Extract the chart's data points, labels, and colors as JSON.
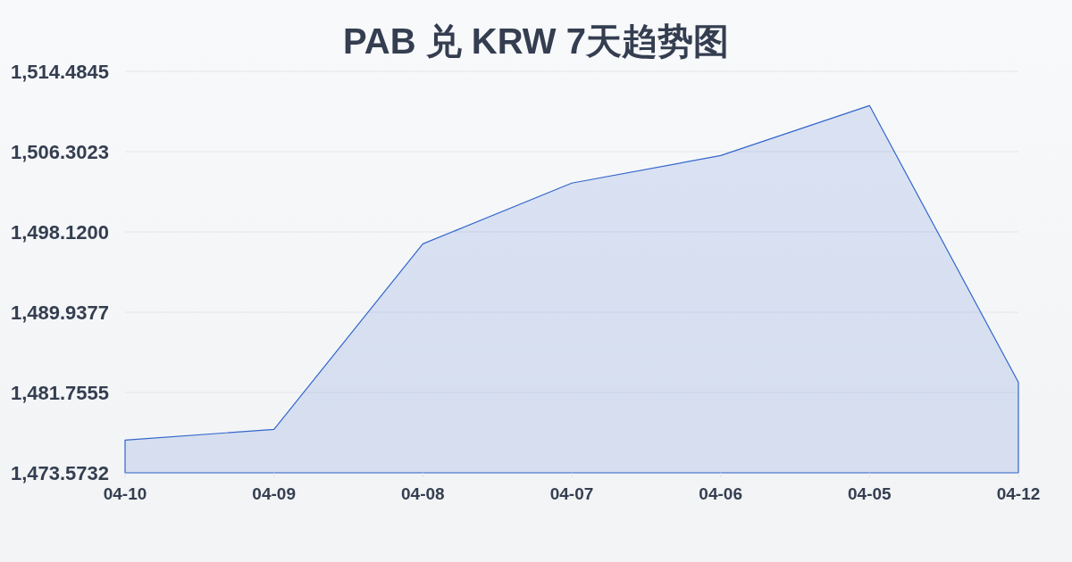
{
  "chart_data": {
    "type": "area",
    "title": "PAB 兑 KRW 7天趋势图",
    "categories": [
      "04-10",
      "04-09",
      "04-08",
      "04-07",
      "04-06",
      "04-05",
      "04-12"
    ],
    "series": [
      {
        "color": "#3366cc",
        "values": [
          1476.9,
          1478.0,
          1496.9,
          1503.1,
          1505.9,
          1511.0,
          1482.8
        ]
      }
    ],
    "ylim": [
      1473.5732,
      1514.4845
    ],
    "yticks": [
      {
        "value": 1473.5732,
        "label": "1,473.5732"
      },
      {
        "value": 1481.7555,
        "label": "1,481.7555"
      },
      {
        "value": 1489.9377,
        "label": "1,489.9377"
      },
      {
        "value": 1498.12,
        "label": "1,498.1200"
      },
      {
        "value": 1506.3023,
        "label": "1,506.3023"
      },
      {
        "value": 1514.4845,
        "label": "1,514.4845"
      }
    ],
    "grid": "y"
  }
}
